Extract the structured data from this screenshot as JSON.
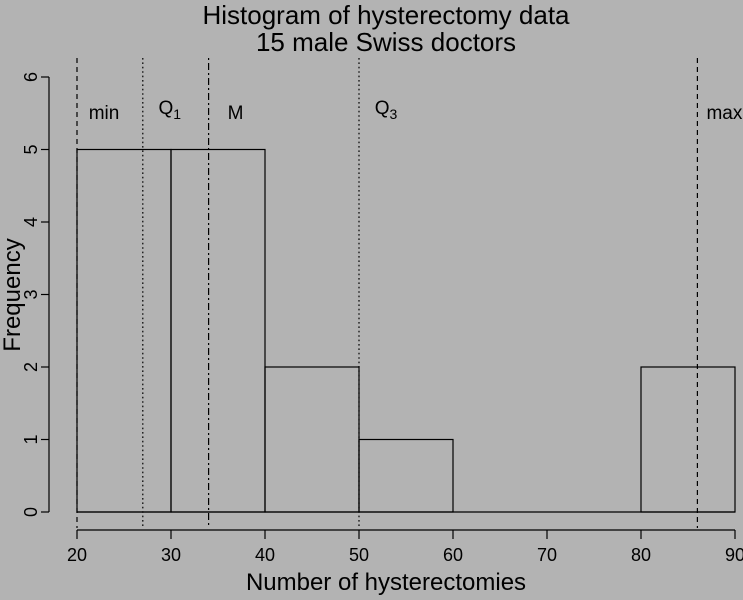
{
  "chart_data": {
    "type": "bar",
    "title": "Histogram of hysterectomy data",
    "subtitle": "15 male Swiss doctors",
    "xlabel": "Number of hysterectomies",
    "ylabel": "Frequency",
    "bin_edges": [
      20,
      30,
      40,
      50,
      60,
      70,
      80,
      90
    ],
    "frequencies": [
      5,
      5,
      2,
      1,
      0,
      0,
      2
    ],
    "x_ticks": [
      "20",
      "30",
      "40",
      "50",
      "60",
      "70",
      "80",
      "90"
    ],
    "y_ticks": [
      "0",
      "1",
      "2",
      "3",
      "4",
      "5",
      "6"
    ],
    "xlim": [
      20,
      90
    ],
    "ylim": [
      0,
      6
    ],
    "grid": false,
    "legend": null,
    "bar_fill": "none",
    "markers": [
      {
        "name": "min",
        "label": "min",
        "sub": "",
        "value": 20,
        "line_style": "dashed"
      },
      {
        "name": "q1",
        "label": "Q",
        "sub": "1",
        "value": 27,
        "line_style": "dotted"
      },
      {
        "name": "median",
        "label": "M",
        "sub": "",
        "value": 34,
        "line_style": "dotdash"
      },
      {
        "name": "q3",
        "label": "Q",
        "sub": "3",
        "value": 50,
        "line_style": "dotted"
      },
      {
        "name": "max",
        "label": "max",
        "sub": "",
        "value": 86,
        "line_style": "dashed"
      }
    ],
    "colors": {
      "background": "#b3b3b3",
      "stroke": "#000000",
      "text": "#000000"
    }
  }
}
